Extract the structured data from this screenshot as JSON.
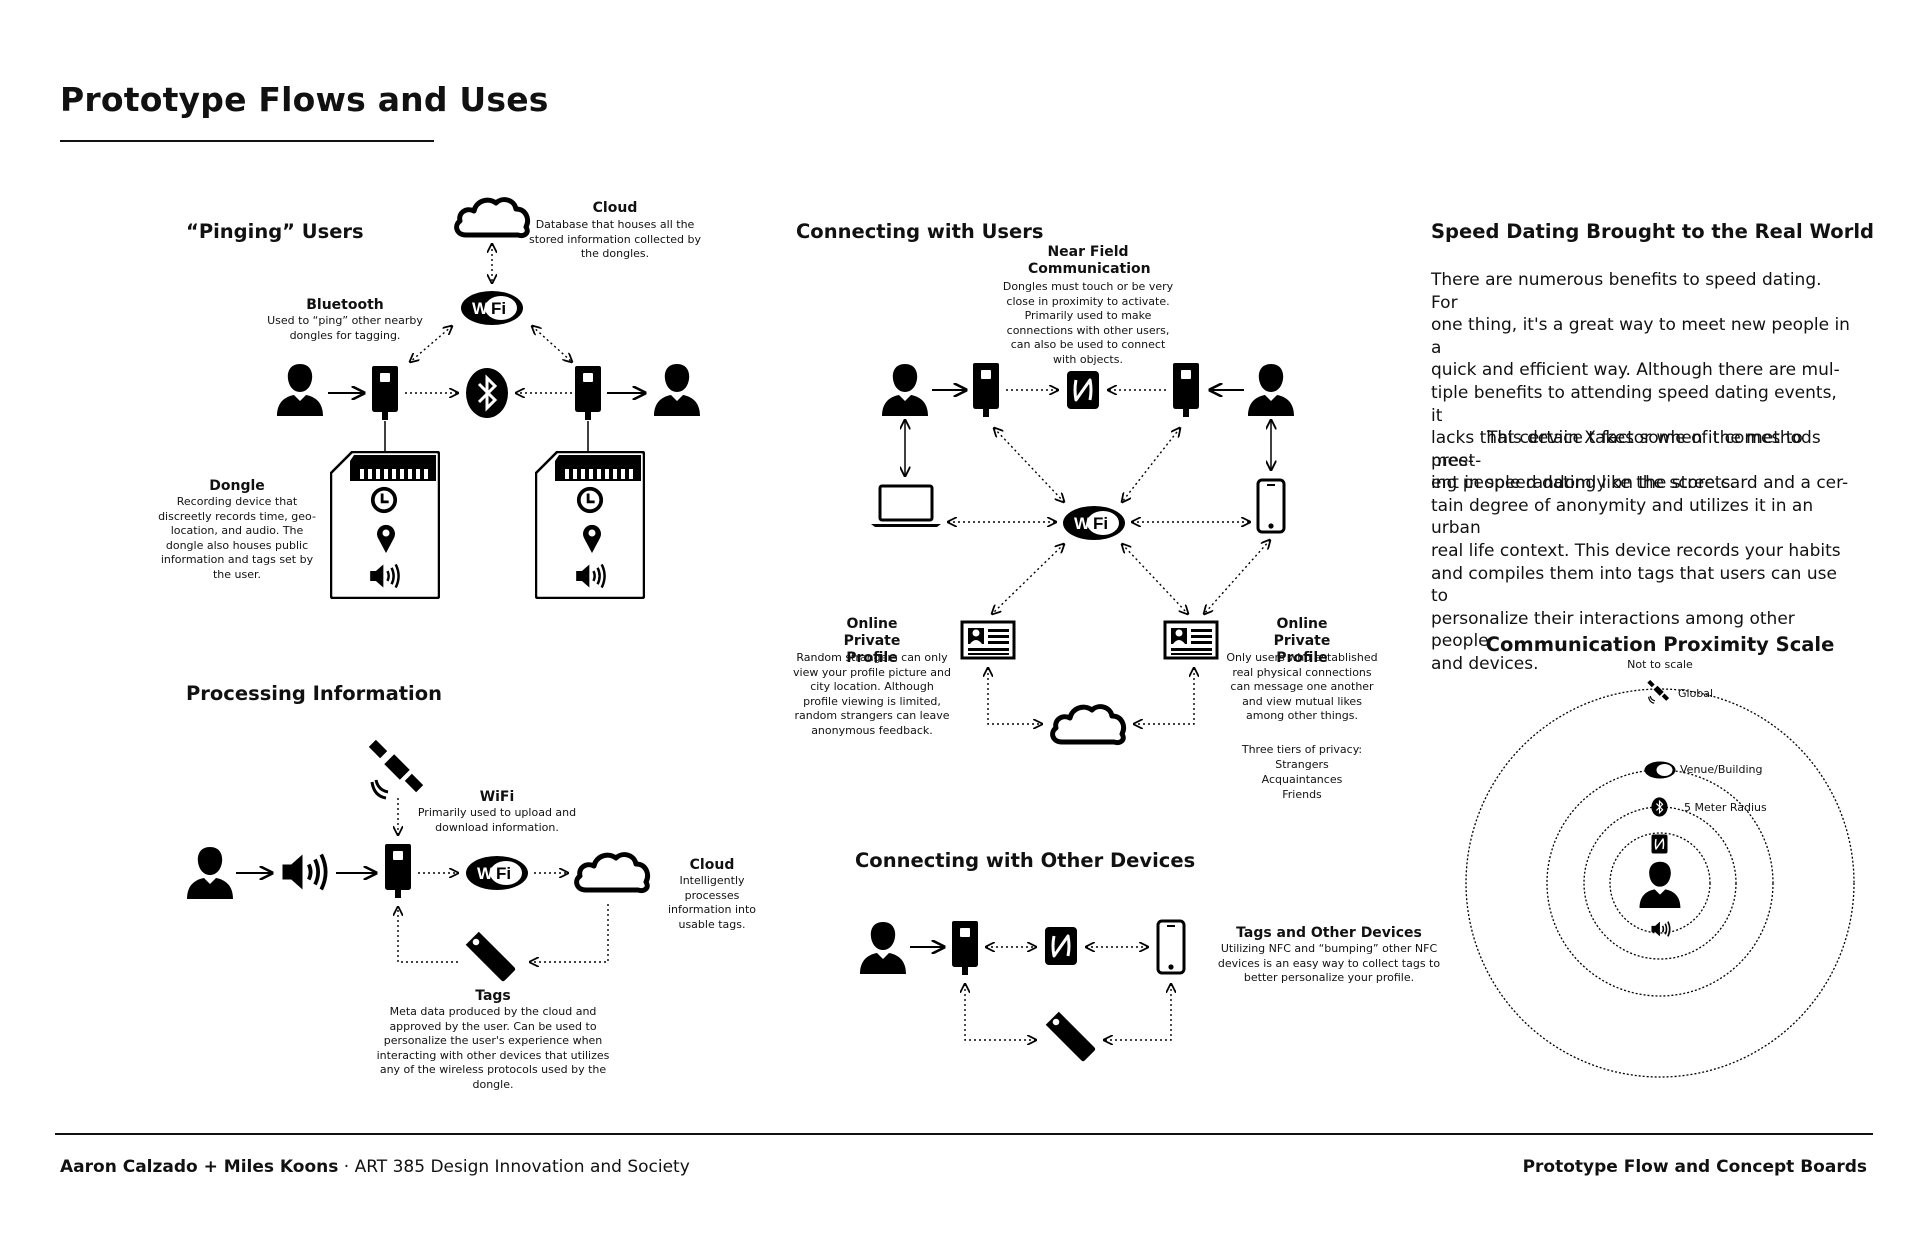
{
  "page": {
    "title": "Prototype Flows and Uses"
  },
  "pinging": {
    "heading": "“Pinging” Users",
    "cloud_title": "Cloud",
    "cloud_desc": "Database that houses all the stored information collected by the dongles.",
    "bluetooth_title": "Bluetooth",
    "bluetooth_desc": "Used to “ping” other nearby dongles for tagging.",
    "dongle_title": "Dongle",
    "dongle_desc": "Recording device that discreetly records time, geo-location, and audio. The dongle also houses public information and tags set by the user."
  },
  "processing": {
    "heading": "Processing Information",
    "wifi_title": "WiFi",
    "wifi_desc": "Primarily used to upload and download information.",
    "cloud_title": "Cloud",
    "cloud_desc": "Intelligently processes information into usable tags.",
    "tags_title": "Tags",
    "tags_desc": "Meta data produced by the cloud and approved by the user. Can be used to personalize the user's experience when interacting with other devices that utilizes any of the wireless protocols used by the dongle."
  },
  "connecting_users": {
    "heading": "Connecting with Users",
    "nfc_title": "Near Field Communication",
    "nfc_desc": "Dongles must touch or be very close in proximity to activate. Primarily used to make connections with other users, can also be used to connect with objects.",
    "left_profile_title": "Online Private Profile",
    "left_profile_desc": "Random strangers can only view your profile picture and city location. Although profile viewing is limited, random strangers can leave anonymous feedback.",
    "right_profile_title": "Online Private Profile",
    "right_profile_desc": "Only users who established real physical connections can message one another and view mutual likes among other things.",
    "privacy_title": "Three tiers of privacy:",
    "privacy_tiers": [
      "Strangers",
      "Acquaintances",
      "Friends"
    ]
  },
  "connecting_devices": {
    "heading": "Connecting with Other Devices",
    "tags_title": "Tags and Other Devices",
    "tags_desc": "Utilizing NFC and “bumping” other NFC devices is an easy way to collect tags to better personalize your profile."
  },
  "speed_dating": {
    "heading": "Speed Dating Brought to the Real World",
    "para1_lines": [
      "There are numerous benefits to speed dating. For",
      "one thing, it's a great way to meet new people in a",
      "quick and efficient way. Although there are mul-",
      "tiple benefits to attending speed dating events, it",
      "lacks that certain X factor when it comes to meet-",
      "ing people randomly on the streets."
    ],
    "para2_lines": [
      "This device takes some of the methods pres-",
      "ent in speed dating like the score card and a cer-",
      "tain degree of anonymity and utilizes it in an urban",
      "real life context. This device records your habits",
      "and compiles them into tags that users can use to",
      "personalize their interactions among other people",
      "and devices."
    ]
  },
  "proximity": {
    "heading": "Communication Proximity Scale",
    "subheading": "Not to scale",
    "labels": [
      "Global",
      "Venue/Building",
      "5 Meter Radius"
    ]
  },
  "icons": {
    "wifi_text": "Wi Fi"
  },
  "footer": {
    "authors": "Aaron Calzado + Miles Koons",
    "separator": "·",
    "course": "ART 385 Design Innovation and Society",
    "right": "Prototype Flow and Concept Boards"
  }
}
